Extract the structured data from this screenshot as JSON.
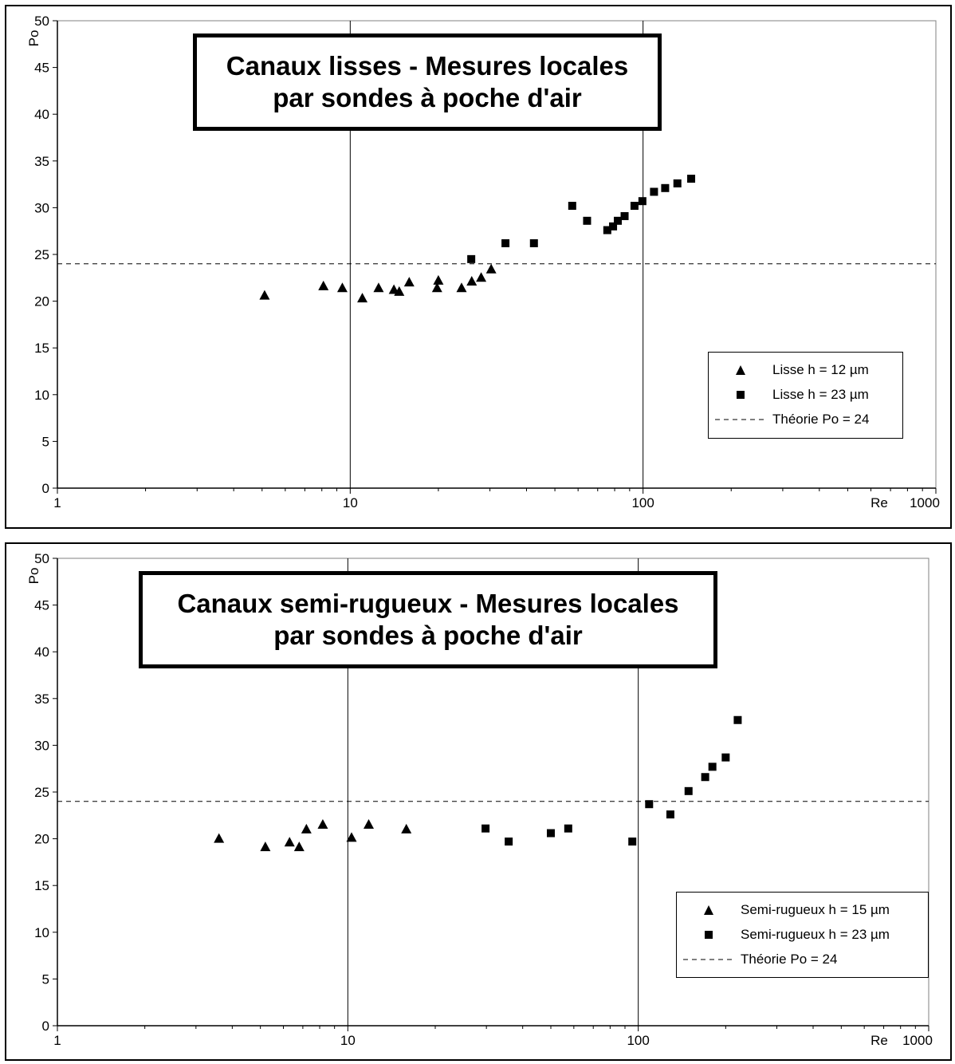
{
  "chart_data": [
    {
      "type": "scatter",
      "title_lines": [
        "Canaux lisses - Mesures locales",
        "par sondes à poche d'air"
      ],
      "xlabel": "Re",
      "ylabel": "Po",
      "x_scale": "log",
      "xlim": [
        1,
        1000
      ],
      "ylim": [
        0,
        50
      ],
      "x_tick_labels": [
        "1",
        "10",
        "100",
        "1000"
      ],
      "y_tick_labels": [
        "0",
        "5",
        "10",
        "15",
        "20",
        "25",
        "30",
        "35",
        "40",
        "45",
        "50"
      ],
      "grid": "vertical lines at 10 and 100",
      "legend_position": "bottom-right",
      "series": [
        {
          "name": "Lisse h = 12 µm",
          "marker": "triangle",
          "color": "#000000",
          "points": [
            [
              5.1,
              20.6
            ],
            [
              8.1,
              21.6
            ],
            [
              9.4,
              21.4
            ],
            [
              11.0,
              20.3
            ],
            [
              12.5,
              21.4
            ],
            [
              14.1,
              21.2
            ],
            [
              14.7,
              21.0
            ],
            [
              15.9,
              22.0
            ],
            [
              19.8,
              21.4
            ],
            [
              20.0,
              22.2
            ],
            [
              24.0,
              21.4
            ],
            [
              26.0,
              22.1
            ],
            [
              28.0,
              22.5
            ],
            [
              30.3,
              23.4
            ]
          ]
        },
        {
          "name": "Lisse h = 23 µm",
          "marker": "square",
          "color": "#000000",
          "points": [
            [
              25.9,
              24.5
            ],
            [
              33.9,
              26.2
            ],
            [
              42.4,
              26.2
            ],
            [
              57.3,
              30.2
            ],
            [
              64.4,
              28.6
            ],
            [
              75.5,
              27.6
            ],
            [
              79.0,
              28.0
            ],
            [
              82.0,
              28.6
            ],
            [
              86.5,
              29.1
            ],
            [
              93.5,
              30.2
            ],
            [
              99.5,
              30.7
            ],
            [
              109.0,
              31.7
            ],
            [
              119.0,
              32.1
            ],
            [
              131.0,
              32.6
            ],
            [
              146.0,
              33.1
            ]
          ]
        },
        {
          "name": "Théorie Po = 24",
          "line_style": "dashed",
          "color": "#000000",
          "y": 24
        }
      ]
    },
    {
      "type": "scatter",
      "title_lines": [
        "Canaux semi-rugueux - Mesures locales",
        "par sondes à poche d'air"
      ],
      "xlabel": "Re",
      "ylabel": "Po",
      "x_scale": "log",
      "xlim": [
        1,
        1000
      ],
      "ylim": [
        0,
        50
      ],
      "x_tick_labels": [
        "1",
        "10",
        "100",
        "1000"
      ],
      "y_tick_labels": [
        "0",
        "5",
        "10",
        "15",
        "20",
        "25",
        "30",
        "35",
        "40",
        "45",
        "50"
      ],
      "grid": "vertical lines at 10 and 100",
      "legend_position": "bottom-right",
      "series": [
        {
          "name": "Semi-rugueux h = 15 µm",
          "marker": "triangle",
          "color": "#000000",
          "points": [
            [
              3.6,
              20.0
            ],
            [
              5.2,
              19.1
            ],
            [
              6.3,
              19.6
            ],
            [
              6.8,
              19.1
            ],
            [
              7.2,
              21.0
            ],
            [
              8.2,
              21.5
            ],
            [
              10.3,
              20.1
            ],
            [
              11.8,
              21.5
            ],
            [
              15.9,
              21.0
            ]
          ]
        },
        {
          "name": "Semi-rugueux h = 23 µm",
          "marker": "square",
          "color": "#000000",
          "points": [
            [
              29.8,
              21.1
            ],
            [
              35.8,
              19.7
            ],
            [
              50.0,
              20.6
            ],
            [
              57.4,
              21.1
            ],
            [
              95.4,
              19.7
            ],
            [
              109.0,
              23.7
            ],
            [
              129.0,
              22.6
            ],
            [
              149.0,
              25.1
            ],
            [
              170.0,
              26.6
            ],
            [
              180.0,
              27.7
            ],
            [
              200.0,
              28.7
            ],
            [
              220.0,
              32.7
            ]
          ]
        },
        {
          "name": "Théorie Po = 24",
          "line_style": "dashed",
          "color": "#000000",
          "y": 24
        }
      ]
    }
  ]
}
